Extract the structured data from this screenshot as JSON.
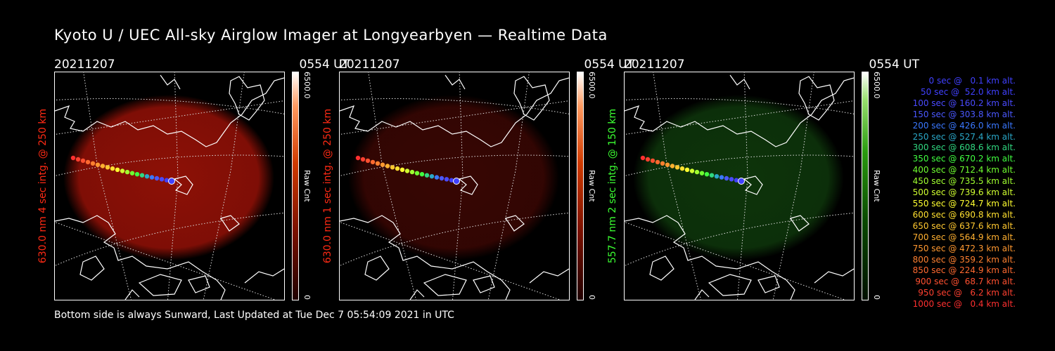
{
  "title": "Kyoto U / UEC All-sky Airglow Imager at Longyearbyen — Realtime Data",
  "panels": [
    {
      "date": "20211207",
      "time": "0554 UT",
      "ylabel": "630.0 nm 4 sec intg. @ 250 km",
      "label_color": "#ff2a14",
      "cbar": "red",
      "cbar_max": "6500.0",
      "cbar_unit": "Raw Cnt",
      "cbar_min": "0",
      "glow": "#b01408",
      "glow_opacity": 0.8
    },
    {
      "date": "20211207",
      "time": "0554 UT",
      "ylabel": "630.0 nm 1 sec intg. @ 250 km",
      "label_color": "#ff2a14",
      "cbar": "red",
      "cbar_max": "6500.0",
      "cbar_unit": "Raw Cnt",
      "cbar_min": "0",
      "glow": "#4a0804",
      "glow_opacity": 0.75
    },
    {
      "date": "20211207",
      "time": "0554 UT",
      "ylabel": "557.7 nm 2 sec intg. @ 150 km",
      "label_color": "#3cff32",
      "cbar": "green",
      "cbar_max": "6500.0",
      "cbar_unit": "Raw Cnt",
      "cbar_min": "0",
      "glow": "#0f3a0c",
      "glow_opacity": 0.9
    }
  ],
  "legend": [
    {
      "text": "0 sec @   0.1 km alt.",
      "color": "#4040ff"
    },
    {
      "text": "50 sec @  52.0 km alt.",
      "color": "#4040ff"
    },
    {
      "text": "100 sec @ 160.2 km alt.",
      "color": "#4a4aff"
    },
    {
      "text": "150 sec @ 303.8 km alt.",
      "color": "#4a58ff"
    },
    {
      "text": "200 sec @ 426.0 km alt.",
      "color": "#3a78ff"
    },
    {
      "text": "250 sec @ 527.4 km alt.",
      "color": "#2aa8c8"
    },
    {
      "text": "300 sec @ 608.6 km alt.",
      "color": "#30d880"
    },
    {
      "text": "350 sec @ 670.2 km alt.",
      "color": "#40ff40"
    },
    {
      "text": "400 sec @ 712.4 km alt.",
      "color": "#70ff30"
    },
    {
      "text": "450 sec @ 735.5 km alt.",
      "color": "#a0ff30"
    },
    {
      "text": "500 sec @ 739.6 km alt.",
      "color": "#d0ff30"
    },
    {
      "text": "550 sec @ 724.7 km alt.",
      "color": "#ffff30"
    },
    {
      "text": "600 sec @ 690.8 km alt.",
      "color": "#ffe030"
    },
    {
      "text": "650 sec @ 637.6 km alt.",
      "color": "#ffc830"
    },
    {
      "text": "700 sec @ 564.9 km alt.",
      "color": "#ffb030"
    },
    {
      "text": "750 sec @ 472.3 km alt.",
      "color": "#ff9830"
    },
    {
      "text": "800 sec @ 359.2 km alt.",
      "color": "#ff8030"
    },
    {
      "text": "850 sec @ 224.9 km alt.",
      "color": "#ff6a30"
    },
    {
      "text": "900 sec @  68.7 km alt.",
      "color": "#ff5030"
    },
    {
      "text": "950 sec @   6.2 km alt.",
      "color": "#ff4030"
    },
    {
      "text": "1000 sec @   0.4 km alt.",
      "color": "#ff3030"
    }
  ],
  "footer": "Bottom side is always Sunward, Last Updated at Tue Dec  7 05:54:09 2021 in UTC"
}
